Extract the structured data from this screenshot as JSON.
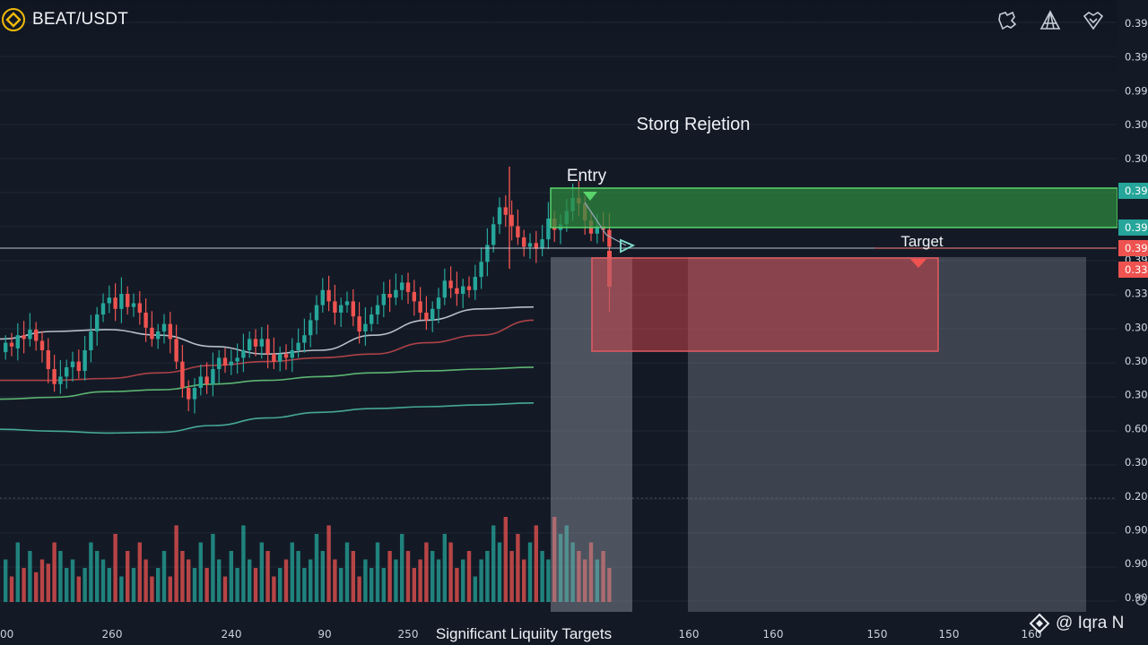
{
  "header": {
    "pair": "BEAT/USDT"
  },
  "toolbar": {
    "icons": [
      "badge-settings-icon",
      "triangle-tool-icon",
      "heart-shield-icon"
    ]
  },
  "watermark": {
    "text": "@ Iqra N"
  },
  "colors": {
    "background": "#131a26",
    "up": "#26a69a",
    "down": "#ef5350",
    "entry_zone": "#2e8b3e",
    "target_zone": "#d2464b",
    "ma_red": "#c0464b",
    "ma_green": "#66c77a",
    "ma_teal": "#4cb8a4",
    "ma_white": "#c9d1da"
  },
  "chart_data": {
    "type": "candlestick",
    "annotations": {
      "rejection": "Storg Rejetion",
      "entry": "Entry",
      "target": "Target",
      "bottom": "Significant Liquiity Targets"
    },
    "y_axis_labels": [
      "0.39",
      "0.39",
      "0.99",
      "0.30",
      "0.30",
      "0.39",
      "0.39",
      "0.39",
      "0.33",
      "0.30",
      "0.30",
      "0.30",
      "0.60",
      "0.30",
      "0.20",
      "0.90",
      "0.90",
      "0.90"
    ],
    "y_axis_tags": [
      {
        "text": "0.39",
        "color": "#26a69a"
      },
      {
        "text": "0.39",
        "color": "#26a69a"
      },
      {
        "text": "0.39",
        "color": "#ef5350"
      },
      {
        "text": "0.33",
        "color": "#ef5350"
      }
    ],
    "x_axis_labels": [
      "00",
      "260",
      "240",
      "90",
      "250",
      "160",
      "160",
      "150",
      "150",
      "160"
    ],
    "candles": [
      [
        0.445,
        0.47
      ],
      [
        0.47,
        0.46
      ],
      [
        0.455,
        0.49
      ],
      [
        0.49,
        0.48
      ],
      [
        0.48,
        0.505
      ],
      [
        0.505,
        0.475
      ],
      [
        0.475,
        0.45
      ],
      [
        0.45,
        0.4
      ],
      [
        0.4,
        0.36
      ],
      [
        0.36,
        0.38
      ],
      [
        0.38,
        0.405
      ],
      [
        0.405,
        0.42
      ],
      [
        0.42,
        0.395
      ],
      [
        0.395,
        0.45
      ],
      [
        0.45,
        0.5
      ],
      [
        0.5,
        0.545
      ],
      [
        0.545,
        0.575
      ],
      [
        0.575,
        0.59
      ],
      [
        0.59,
        0.56
      ],
      [
        0.56,
        0.6
      ],
      [
        0.6,
        0.565
      ],
      [
        0.565,
        0.575
      ],
      [
        0.575,
        0.55
      ],
      [
        0.55,
        0.51
      ],
      [
        0.51,
        0.48
      ],
      [
        0.48,
        0.5
      ],
      [
        0.5,
        0.52
      ],
      [
        0.52,
        0.48
      ],
      [
        0.48,
        0.42
      ],
      [
        0.42,
        0.35
      ],
      [
        0.35,
        0.32
      ],
      [
        0.32,
        0.35
      ],
      [
        0.35,
        0.38
      ],
      [
        0.38,
        0.36
      ],
      [
        0.36,
        0.4
      ],
      [
        0.4,
        0.43
      ],
      [
        0.43,
        0.41
      ],
      [
        0.41,
        0.42
      ],
      [
        0.42,
        0.43
      ],
      [
        0.43,
        0.45
      ],
      [
        0.45,
        0.48
      ],
      [
        0.48,
        0.46
      ],
      [
        0.46,
        0.48
      ],
      [
        0.48,
        0.44
      ],
      [
        0.44,
        0.42
      ],
      [
        0.42,
        0.44
      ],
      [
        0.44,
        0.43
      ],
      [
        0.43,
        0.45
      ],
      [
        0.45,
        0.47
      ],
      [
        0.47,
        0.49
      ],
      [
        0.49,
        0.53
      ],
      [
        0.53,
        0.57
      ],
      [
        0.57,
        0.61
      ],
      [
        0.61,
        0.58
      ],
      [
        0.58,
        0.55
      ],
      [
        0.55,
        0.57
      ],
      [
        0.57,
        0.58
      ],
      [
        0.58,
        0.54
      ],
      [
        0.54,
        0.5
      ],
      [
        0.5,
        0.52
      ],
      [
        0.52,
        0.545
      ],
      [
        0.545,
        0.57
      ],
      [
        0.57,
        0.6
      ],
      [
        0.6,
        0.59
      ],
      [
        0.59,
        0.61
      ],
      [
        0.61,
        0.63
      ],
      [
        0.63,
        0.605
      ],
      [
        0.605,
        0.58
      ],
      [
        0.58,
        0.55
      ],
      [
        0.55,
        0.53
      ],
      [
        0.53,
        0.56
      ],
      [
        0.56,
        0.59
      ],
      [
        0.59,
        0.635
      ],
      [
        0.635,
        0.615
      ],
      [
        0.615,
        0.6
      ],
      [
        0.6,
        0.62
      ],
      [
        0.62,
        0.61
      ],
      [
        0.61,
        0.645
      ],
      [
        0.645,
        0.685
      ],
      [
        0.685,
        0.73
      ],
      [
        0.73,
        0.785
      ],
      [
        0.785,
        0.83
      ],
      [
        0.83,
        0.81
      ],
      [
        0.81,
        0.78
      ],
      [
        0.78,
        0.75
      ],
      [
        0.75,
        0.725
      ],
      [
        0.725,
        0.735
      ],
      [
        0.735,
        0.72
      ],
      [
        0.72,
        0.745
      ],
      [
        0.745,
        0.8
      ],
      [
        0.8,
        0.77
      ],
      [
        0.77,
        0.785
      ],
      [
        0.785,
        0.82
      ],
      [
        0.82,
        0.855
      ],
      [
        0.855,
        0.84
      ],
      [
        0.84,
        0.795
      ],
      [
        0.795,
        0.76
      ],
      [
        0.76,
        0.78
      ],
      [
        0.78,
        0.77
      ],
      [
        0.77,
        0.725
      ]
    ],
    "moving_averages": [
      {
        "name": "ma-white",
        "color": "#c9d1da",
        "values": [
          0.48,
          0.5,
          0.505,
          0.49,
          0.46,
          0.44,
          0.45,
          0.49,
          0.53,
          0.56,
          0.565
        ]
      },
      {
        "name": "ma-red",
        "color": "#c0464b",
        "values": [
          0.37,
          0.37,
          0.375,
          0.39,
          0.41,
          0.42,
          0.43,
          0.44,
          0.47,
          0.49,
          0.53
        ]
      },
      {
        "name": "ma-green",
        "color": "#66c77a",
        "values": [
          0.32,
          0.325,
          0.34,
          0.345,
          0.36,
          0.37,
          0.38,
          0.39,
          0.395,
          0.4,
          0.405
        ]
      },
      {
        "name": "ma-teal",
        "color": "#4cb8a4",
        "values": [
          0.24,
          0.235,
          0.23,
          0.232,
          0.25,
          0.27,
          0.285,
          0.295,
          0.3,
          0.305,
          0.31
        ]
      }
    ],
    "volume_axis_range": [
      0,
      1
    ],
    "volume": [
      0.5,
      0.3,
      0.7,
      0.4,
      0.6,
      0.35,
      0.5,
      0.45,
      0.7,
      0.6,
      0.4,
      0.5,
      0.3,
      0.4,
      0.7,
      0.6,
      0.5,
      0.4,
      0.8,
      0.3,
      0.6,
      0.4,
      0.7,
      0.5,
      0.3,
      0.4,
      0.6,
      0.3,
      0.9,
      0.6,
      0.5,
      0.4,
      0.7,
      0.4,
      0.8,
      0.5,
      0.3,
      0.6,
      0.4,
      0.9,
      0.5,
      0.4,
      0.7,
      0.6,
      0.3,
      0.4,
      0.5,
      0.7,
      0.6,
      0.4,
      0.5,
      0.8,
      0.6,
      0.9,
      0.5,
      0.4,
      0.7,
      0.6,
      0.3,
      0.5,
      0.4,
      0.7,
      0.4,
      0.6,
      0.5,
      0.8,
      0.6,
      0.4,
      0.5,
      0.7,
      0.6,
      0.5,
      0.8,
      0.7,
      0.4,
      0.5,
      0.6,
      0.3,
      0.5,
      0.6,
      0.9,
      0.7,
      1.0,
      0.6,
      0.8,
      0.5,
      0.7,
      0.9,
      0.6,
      0.5,
      1.0,
      0.8,
      0.9,
      0.7,
      0.6,
      0.5,
      0.7,
      0.5,
      0.6,
      0.4
    ]
  }
}
